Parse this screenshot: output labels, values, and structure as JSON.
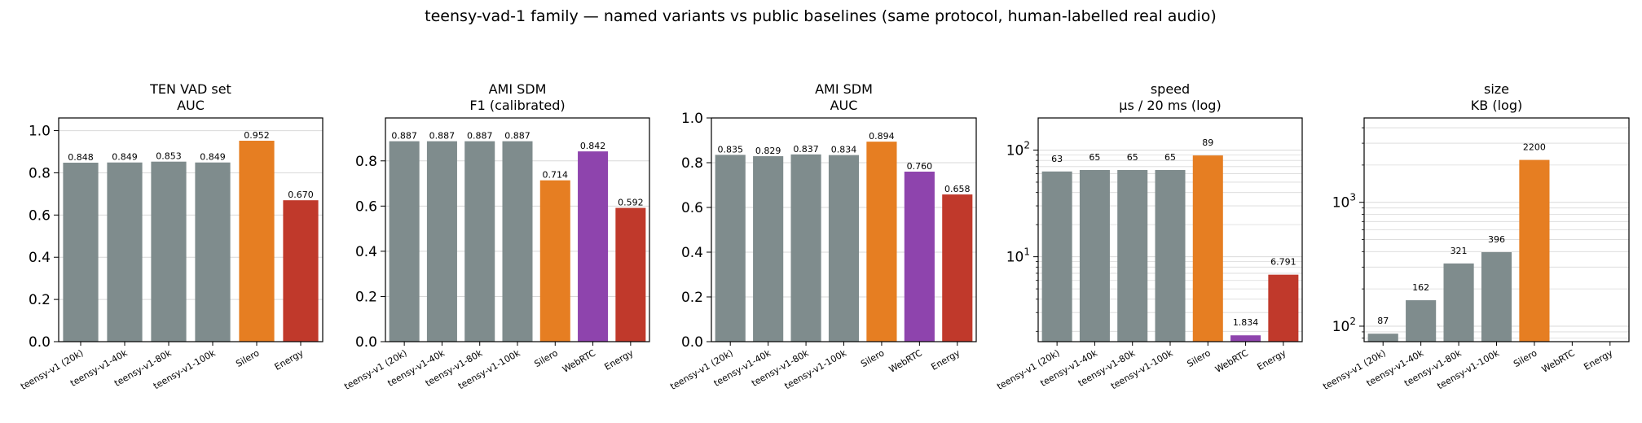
{
  "suptitle": "teensy-vad-1 family — named variants vs public baselines (same protocol, human-labelled real audio)",
  "colors": {
    "variant": "#7f8c8d",
    "Silero": "#e67e22",
    "WebRTC": "#8e44ad",
    "Energy": "#c0392b",
    "grid": "#d9d9d9",
    "axis": "#000000"
  },
  "chart_data": [
    {
      "type": "bar",
      "title": "TEN VAD set\nAUC",
      "categories": [
        "teensy-v1 (20k)",
        "teensy-v1-40k",
        "teensy-v1-80k",
        "teensy-v1-100k",
        "Silero",
        "Energy"
      ],
      "values": [
        0.848,
        0.849,
        0.853,
        0.849,
        0.952,
        0.67
      ],
      "value_labels": [
        "0.848",
        "0.849",
        "0.853",
        "0.849",
        "0.952",
        "0.670"
      ],
      "scale": "linear",
      "ylim": [
        0,
        1.06
      ],
      "yticks": [
        0.0,
        0.2,
        0.4,
        0.6,
        0.8,
        1.0
      ],
      "ytick_labels": [
        "0.0",
        "0.2",
        "0.4",
        "0.6",
        "0.8",
        "1.0"
      ],
      "grid": true
    },
    {
      "type": "bar",
      "title": "AMI SDM\nF1 (calibrated)",
      "categories": [
        "teensy-v1 (20k)",
        "teensy-v1-40k",
        "teensy-v1-80k",
        "teensy-v1-100k",
        "Silero",
        "WebRTC",
        "Energy"
      ],
      "values": [
        0.887,
        0.887,
        0.887,
        0.887,
        0.714,
        0.842,
        0.592
      ],
      "value_labels": [
        "0.887",
        "0.887",
        "0.887",
        "0.887",
        "0.714",
        "0.842",
        "0.592"
      ],
      "scale": "linear",
      "ylim": [
        0,
        0.99
      ],
      "yticks": [
        0.0,
        0.2,
        0.4,
        0.6,
        0.8
      ],
      "ytick_labels": [
        "0.0",
        "0.2",
        "0.4",
        "0.6",
        "0.8"
      ],
      "grid": true
    },
    {
      "type": "bar",
      "title": "AMI SDM\nAUC",
      "categories": [
        "teensy-v1 (20k)",
        "teensy-v1-40k",
        "teensy-v1-80k",
        "teensy-v1-100k",
        "Silero",
        "WebRTC",
        "Energy"
      ],
      "values": [
        0.835,
        0.829,
        0.837,
        0.834,
        0.894,
        0.76,
        0.658
      ],
      "value_labels": [
        "0.835",
        "0.829",
        "0.837",
        "0.834",
        "0.894",
        "0.760",
        "0.658"
      ],
      "scale": "linear",
      "ylim": [
        0,
        1.0
      ],
      "yticks": [
        0.0,
        0.2,
        0.4,
        0.6,
        0.8,
        1.0
      ],
      "ytick_labels": [
        "0.0",
        "0.2",
        "0.4",
        "0.6",
        "0.8",
        "1.0"
      ],
      "grid": true
    },
    {
      "type": "bar",
      "title": "speed\nµs / 20 ms (log)",
      "categories": [
        "teensy-v1 (20k)",
        "teensy-v1-40k",
        "teensy-v1-80k",
        "teensy-v1-100k",
        "Silero",
        "WebRTC",
        "Energy"
      ],
      "values": [
        63,
        65,
        65,
        65,
        89,
        1.834,
        6.791
      ],
      "value_labels": [
        "63",
        "65",
        "65",
        "65",
        "89",
        "1.834",
        "6.791"
      ],
      "scale": "log",
      "ylim": [
        1.6,
        200
      ],
      "yticks": [
        10,
        100
      ],
      "ytick_labels": [
        "10^1",
        "10^2"
      ],
      "grid": true
    },
    {
      "type": "bar",
      "title": "size\nKB (log)",
      "categories": [
        "teensy-v1 (20k)",
        "teensy-v1-40k",
        "teensy-v1-80k",
        "teensy-v1-100k",
        "Silero",
        "WebRTC",
        "Energy"
      ],
      "values": [
        87,
        162,
        321,
        396,
        2200,
        null,
        null
      ],
      "value_labels": [
        "87",
        "162",
        "321",
        "396",
        "2200",
        "",
        ""
      ],
      "scale": "log",
      "ylim": [
        75,
        4800
      ],
      "yticks": [
        100,
        1000
      ],
      "ytick_labels": [
        "10^2",
        "10^3"
      ],
      "grid": true
    }
  ]
}
